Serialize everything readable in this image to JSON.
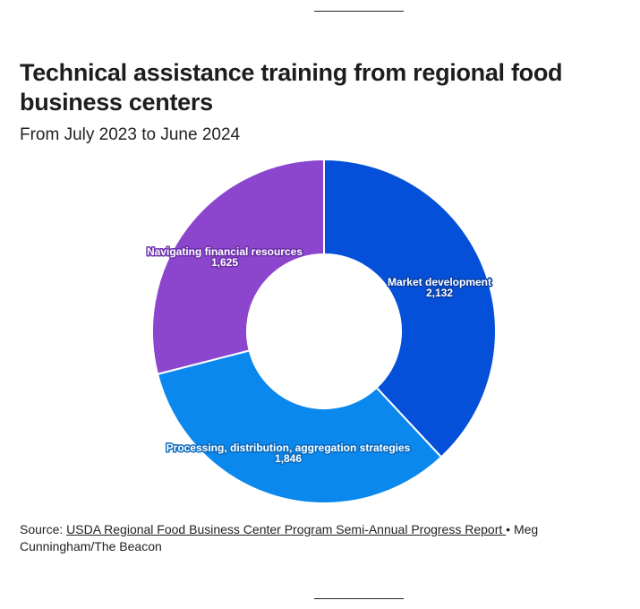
{
  "header": {
    "title": "Technical assistance training from regional food business centers",
    "subtitle": "From July 2023 to June 2024"
  },
  "footer": {
    "source_prefix": "Source: ",
    "source_link": "USDA Regional Food Business Center Program Semi-Annual Progress Report ",
    "source_suffix": "• Meg Cunningham/The Beacon"
  },
  "labels": {
    "s0_name": "Market development",
    "s0_value": "2,132",
    "s1_name": "Processing, distribution, aggregation strategies",
    "s1_value": "1,846",
    "s2_name": "Navigating financial resources",
    "s2_value": "1,625"
  },
  "chart_data": {
    "type": "pie",
    "variant": "donut",
    "title": "Technical assistance training from regional food business centers",
    "subtitle": "From July 2023 to June 2024",
    "categories": [
      "Market development",
      "Processing, distribution, aggregation strategies",
      "Navigating financial resources"
    ],
    "values": [
      2132,
      1846,
      1625
    ],
    "colors": [
      "#0550d8",
      "#0a88ee",
      "#8c46cd"
    ],
    "label_outline_colors": [
      "#0a3fa6",
      "#0a6bbd",
      "#6a2fa8"
    ],
    "start_angle_deg": 0,
    "direction": "clockwise",
    "legend": "none (direct labels)"
  }
}
